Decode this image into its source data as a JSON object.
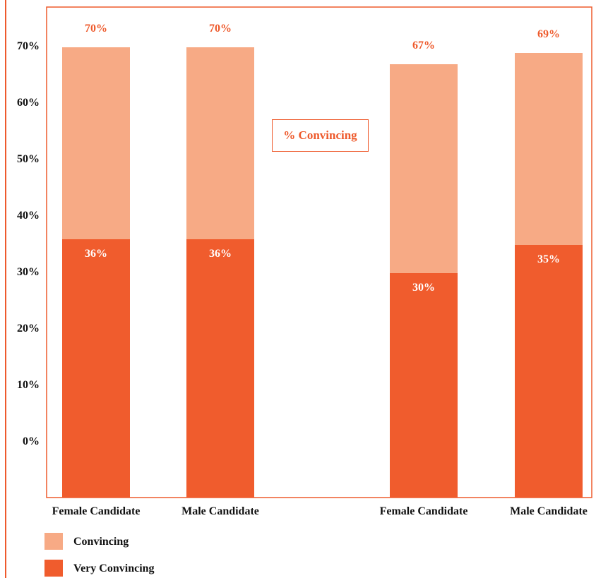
{
  "colors": {
    "accent": "#ee5a2c",
    "very_convincing": "#f05c2d",
    "convincing": "#f7aa85"
  },
  "annotation": "% Convincing",
  "chart_data": {
    "type": "bar",
    "stacked": true,
    "categories": [
      "Female Candidate",
      "Male Candidate",
      "Female Candidate",
      "Male Candidate"
    ],
    "series": [
      {
        "name": "Very Convincing",
        "values": [
          36,
          36,
          30,
          35
        ]
      },
      {
        "name": "Convincing",
        "values": [
          34,
          34,
          37,
          34
        ]
      }
    ],
    "totals": [
      70,
      70,
      67,
      69
    ],
    "value_labels": {
      "totals": [
        "70%",
        "70%",
        "67%",
        "69%"
      ],
      "very_convincing": [
        "36%",
        "36%",
        "30%",
        "35%"
      ]
    },
    "y_ticks": [
      "0%",
      "10%",
      "20%",
      "30%",
      "40%",
      "50%",
      "60%",
      "70%"
    ],
    "ylim": [
      0,
      70
    ],
    "grid": false,
    "legend": {
      "placement": "bottom-left",
      "entries": [
        "Convincing",
        "Very Convincing"
      ]
    }
  }
}
